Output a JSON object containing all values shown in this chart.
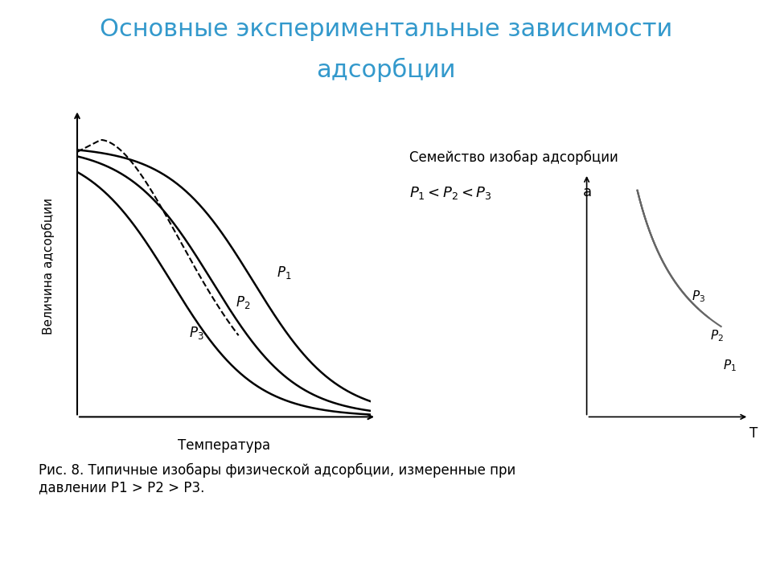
{
  "title_line1": "Основные экспериментальные зависимости",
  "title_line2": "адсорбции",
  "title_color": "#3399CC",
  "title_fontsize": 22,
  "caption": "Рис. 8. Типичные изобары физической адсорбции, измеренные при\nдавлении P1 > P2 > P3.",
  "caption_fontsize": 12,
  "left_ylabel": "Величина адсорбции",
  "left_xlabel": "Температура",
  "right_title": "Семейство изобар адсорбции",
  "right_ylabel": "a",
  "right_xlabel": "T",
  "background_color": "#ffffff",
  "curve_color": "#000000",
  "right_curve_color": "#888888"
}
